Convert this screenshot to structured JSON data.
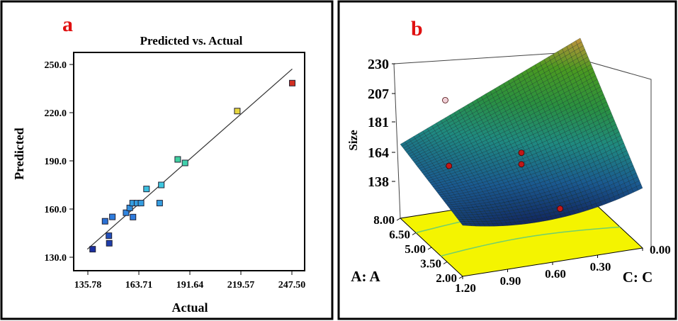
{
  "chart_data": [
    {
      "panel_label": "a",
      "type": "scatter",
      "title": "Predicted vs. Actual",
      "xlabel": "Actual",
      "ylabel": "Predicted",
      "xlim": [
        130,
        255
      ],
      "ylim": [
        125,
        257
      ],
      "xticks": [
        "135.78",
        "163.71",
        "191.64",
        "219.57",
        "247.50"
      ],
      "yticks": [
        "130.0",
        "160.0",
        "190.0",
        "220.0",
        "250.0"
      ],
      "points": [
        {
          "x": 138.4,
          "y": 135.0
        },
        {
          "x": 145.2,
          "y": 152.4
        },
        {
          "x": 149.2,
          "y": 155.1
        },
        {
          "x": 147.3,
          "y": 143.4
        },
        {
          "x": 147.5,
          "y": 138.7
        },
        {
          "x": 156.7,
          "y": 157.7
        },
        {
          "x": 158.7,
          "y": 160.7
        },
        {
          "x": 160.5,
          "y": 155.0
        },
        {
          "x": 160.3,
          "y": 163.7
        },
        {
          "x": 162.7,
          "y": 163.7
        },
        {
          "x": 164.9,
          "y": 163.7
        },
        {
          "x": 167.9,
          "y": 172.5
        },
        {
          "x": 175.1,
          "y": 163.7
        },
        {
          "x": 176.0,
          "y": 175.0
        },
        {
          "x": 185.0,
          "y": 190.9
        },
        {
          "x": 189.0,
          "y": 188.7
        },
        {
          "x": 217.6,
          "y": 221.0
        },
        {
          "x": 247.7,
          "y": 238.4
        }
      ],
      "fit_line": [
        [
          135.5,
          135.0
        ],
        [
          247.7,
          247.2
        ]
      ],
      "colorscale": [
        "#1a2fa0",
        "#2f7fe0",
        "#40d0e0",
        "#40d080",
        "#e8e840",
        "#d02020"
      ]
    },
    {
      "panel_label": "b",
      "type": "surface",
      "zlabel": "Size",
      "xlabel": "A: A",
      "ylabel": "C: C",
      "zticks": [
        "138",
        "164",
        "181",
        "207",
        "230"
      ],
      "zlim": [
        109,
        230
      ],
      "a_ticks": [
        "2.00",
        "3.50",
        "5.00",
        "6.50",
        "8.00"
      ],
      "c_ticks": [
        "1.20",
        "0.90",
        "0.60",
        "0.30",
        "0.00"
      ],
      "a_range": [
        2,
        8
      ],
      "c_range": [
        0,
        1.2
      ],
      "corner_values": {
        "A2_C1.2": 149,
        "A8_C1.2": 167,
        "A2_C0": 156,
        "A8_C0": 228
      },
      "design_points": [
        {
          "A": 6.2,
          "C": 1.0,
          "z": 160
        },
        {
          "A": 5.0,
          "C": 0.6,
          "z": 172
        },
        {
          "A": 5.0,
          "C": 0.6,
          "z": 163
        },
        {
          "A": 2.0,
          "C": 0.55,
          "z": 150
        },
        {
          "A": 8.0,
          "C": 0.9,
          "z": 196
        }
      ]
    }
  ]
}
